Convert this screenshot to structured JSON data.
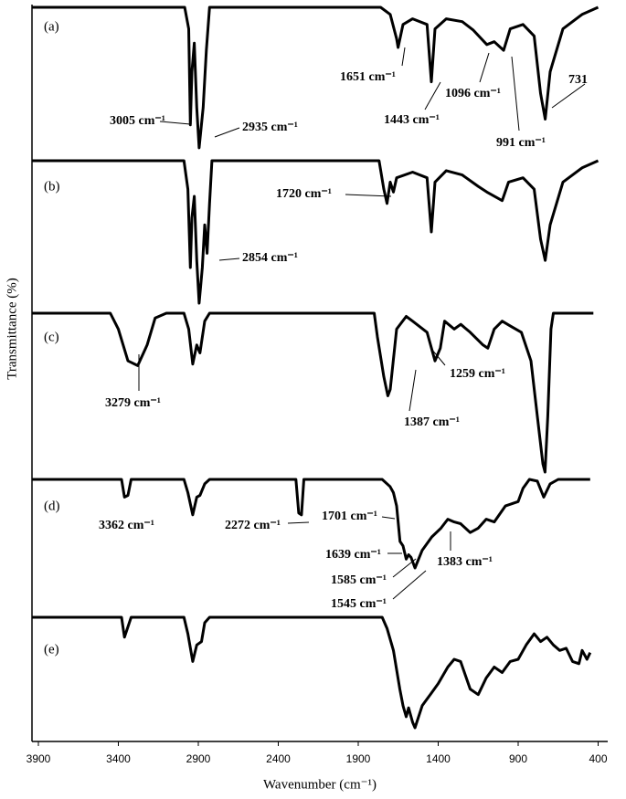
{
  "chart_data": {
    "type": "line",
    "xlabel": "Wavenumber (cm⁻¹)",
    "ylabel": "Transmittance (%)",
    "xlim": [
      3940,
      340
    ],
    "xticks": [
      3900,
      3400,
      2900,
      2400,
      1900,
      1400,
      900,
      400
    ],
    "ylim": [
      0,
      100
    ],
    "color": "#000000",
    "series": [
      {
        "name": "(a)",
        "x": [
          3940,
          2985,
          2960,
          2950,
          2940,
          2925,
          2910,
          2895,
          2870,
          2850,
          2830,
          1760,
          1700,
          1660,
          1651,
          1620,
          1560,
          1470,
          1443,
          1420,
          1350,
          1250,
          1180,
          1096,
          1050,
          991,
          950,
          870,
          800,
          760,
          731,
          700,
          620,
          500,
          400
        ],
        "values": [
          100,
          100,
          85,
          18,
          55,
          75,
          30,
          2,
          30,
          70,
          100,
          100,
          95,
          78,
          72,
          88,
          92,
          88,
          48,
          85,
          92,
          90,
          84,
          74,
          76,
          70,
          85,
          88,
          80,
          40,
          22,
          55,
          85,
          95,
          100
        ],
        "annotations": [
          "3005 cm⁻¹",
          "2935 cm⁻¹",
          "1651 cm⁻¹",
          "1443 cm⁻¹",
          "1096 cm⁻¹",
          "991 cm⁻¹",
          "731"
        ]
      },
      {
        "name": "(b)",
        "x": [
          3940,
          2990,
          2965,
          2950,
          2940,
          2925,
          2910,
          2895,
          2875,
          2860,
          2845,
          2830,
          2815,
          1770,
          1740,
          1720,
          1700,
          1680,
          1660,
          1560,
          1470,
          1443,
          1420,
          1350,
          1250,
          1150,
          1096,
          1000,
          960,
          870,
          800,
          760,
          731,
          700,
          620,
          500,
          400
        ],
        "values": [
          100,
          100,
          80,
          25,
          60,
          75,
          30,
          0,
          25,
          55,
          35,
          70,
          100,
          100,
          80,
          70,
          85,
          78,
          88,
          92,
          88,
          50,
          85,
          93,
          90,
          82,
          78,
          72,
          85,
          88,
          80,
          45,
          30,
          55,
          85,
          95,
          100
        ],
        "annotations": [
          "1720 cm⁻¹",
          "2854 cm⁻¹"
        ]
      },
      {
        "name": "(c)",
        "x": [
          3940,
          3450,
          3400,
          3340,
          3279,
          3220,
          3170,
          3100,
          2990,
          2960,
          2935,
          2910,
          2890,
          2860,
          2830,
          1800,
          1780,
          1740,
          1715,
          1700,
          1660,
          1600,
          1560,
          1470,
          1420,
          1387,
          1360,
          1300,
          1259,
          1200,
          1120,
          1090,
          1050,
          1000,
          950,
          880,
          820,
          780,
          745,
          732,
          715,
          695,
          680,
          430
        ],
        "values": [
          100,
          100,
          90,
          70,
          67,
          80,
          97,
          100,
          100,
          90,
          68,
          80,
          75,
          95,
          100,
          100,
          85,
          60,
          48,
          52,
          90,
          98,
          95,
          88,
          70,
          78,
          95,
          90,
          93,
          88,
          80,
          78,
          90,
          95,
          92,
          88,
          70,
          35,
          5,
          0,
          35,
          90,
          100,
          100
        ],
        "annotations": [
          "3279 cm⁻¹",
          "1387 cm⁻¹",
          "1259 cm⁻¹"
        ]
      },
      {
        "name": "(d)",
        "x": [
          3940,
          3380,
          3362,
          3340,
          3320,
          2990,
          2965,
          2935,
          2910,
          2890,
          2860,
          2830,
          2290,
          2272,
          2255,
          2240,
          1750,
          1701,
          1680,
          1660,
          1639,
          1620,
          1600,
          1585,
          1570,
          1545,
          1500,
          1440,
          1383,
          1340,
          1300,
          1260,
          1200,
          1150,
          1100,
          1050,
          980,
          900,
          870,
          830,
          780,
          740,
          700,
          650,
          550,
          450
        ],
        "values": [
          100,
          100,
          80,
          82,
          100,
          100,
          85,
          60,
          80,
          82,
          95,
          100,
          100,
          62,
          60,
          100,
          100,
          92,
          85,
          70,
          30,
          25,
          10,
          15,
          12,
          0,
          20,
          35,
          45,
          55,
          52,
          50,
          40,
          45,
          55,
          52,
          70,
          75,
          90,
          100,
          98,
          80,
          95,
          100,
          100,
          100
        ],
        "annotations": [
          "3362 cm⁻¹",
          "2272 cm⁻¹",
          "1701 cm⁻¹",
          "1639 cm⁻¹",
          "1585 cm⁻¹",
          "1545 cm⁻¹",
          "1383 cm⁻¹"
        ]
      },
      {
        "name": "(e)",
        "x": [
          3940,
          3380,
          3362,
          3320,
          2990,
          2965,
          2935,
          2910,
          2880,
          2860,
          2830,
          1750,
          1720,
          1680,
          1640,
          1620,
          1600,
          1585,
          1560,
          1545,
          1500,
          1450,
          1400,
          1340,
          1300,
          1260,
          1200,
          1150,
          1100,
          1050,
          1000,
          950,
          900,
          850,
          800,
          760,
          720,
          680,
          640,
          600,
          560,
          520,
          500,
          470,
          450
        ],
        "values": [
          100,
          100,
          82,
          100,
          100,
          85,
          60,
          75,
          78,
          95,
          100,
          100,
          90,
          70,
          35,
          20,
          10,
          18,
          5,
          0,
          20,
          30,
          40,
          55,
          62,
          60,
          35,
          30,
          45,
          55,
          50,
          60,
          62,
          75,
          85,
          78,
          82,
          75,
          70,
          72,
          60,
          58,
          70,
          62,
          68
        ],
        "annotations": []
      }
    ]
  }
}
